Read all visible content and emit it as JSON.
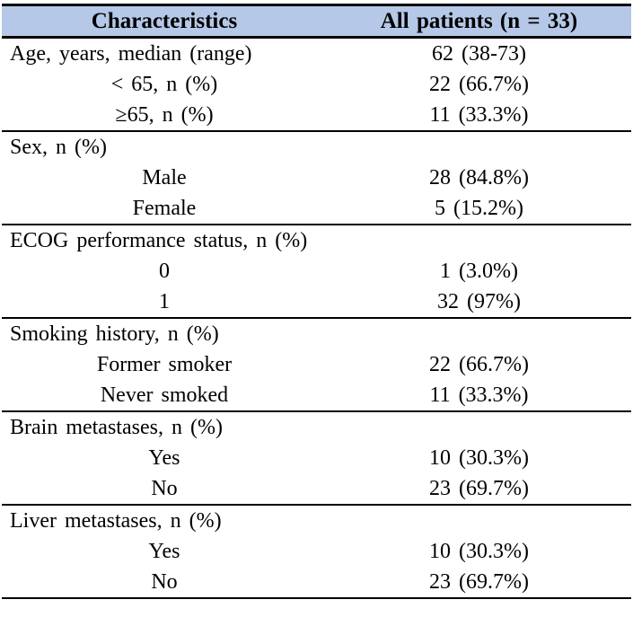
{
  "table": {
    "header": {
      "characteristics": "Characteristics",
      "all_patients": "All patients (n = 33)"
    },
    "colors": {
      "header_bg": "#b5c8e8",
      "border": "#000000",
      "text": "#000000",
      "background": "#ffffff"
    },
    "sections": [
      {
        "rows": [
          {
            "label": "Age, years, median (range)",
            "value": "62 (38-73)"
          },
          {
            "label": "< 65, n (%)",
            "value": "22 (66.7%)"
          },
          {
            "label": "≥65, n (%)",
            "value": "11 (33.3%)"
          }
        ]
      },
      {
        "rows": [
          {
            "label": "Sex, n (%)",
            "value": ""
          },
          {
            "label": "Male",
            "value": "28 (84.8%)"
          },
          {
            "label": "Female",
            "value": "5 (15.2%)"
          }
        ]
      },
      {
        "rows": [
          {
            "label": "ECOG performance status, n (%)",
            "value": ""
          },
          {
            "label": "0",
            "value": "1 (3.0%)"
          },
          {
            "label": "1",
            "value": "32 (97%)"
          }
        ]
      },
      {
        "rows": [
          {
            "label": "Smoking history, n (%)",
            "value": ""
          },
          {
            "label": "Former smoker",
            "value": "22 (66.7%)"
          },
          {
            "label": "Never smoked",
            "value": "11 (33.3%)"
          }
        ]
      },
      {
        "rows": [
          {
            "label": "Brain metastases, n (%)",
            "value": ""
          },
          {
            "label": "Yes",
            "value": "10 (30.3%)"
          },
          {
            "label": "No",
            "value": "23 (69.7%)"
          }
        ]
      },
      {
        "rows": [
          {
            "label": "Liver metastases, n (%)",
            "value": ""
          },
          {
            "label": "Yes",
            "value": "10 (30.3%)"
          },
          {
            "label": "No",
            "value": "23 (69.7%)"
          }
        ]
      }
    ]
  }
}
